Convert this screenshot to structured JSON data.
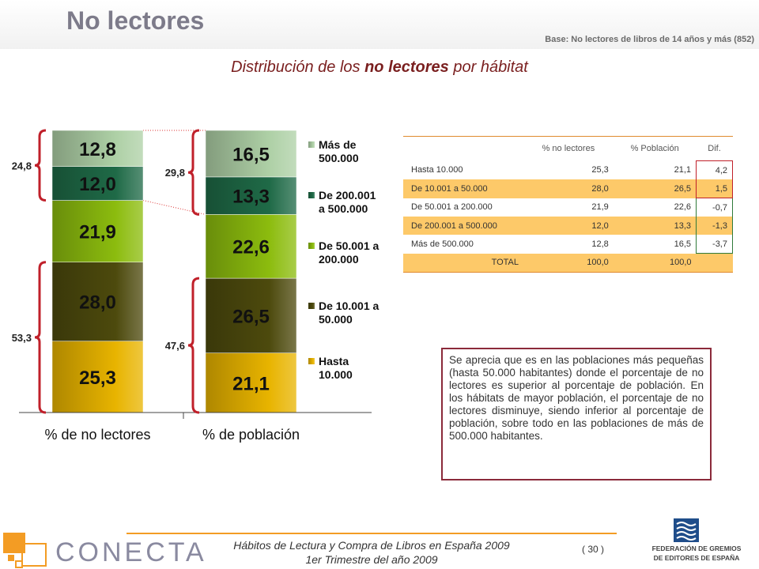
{
  "header": {
    "title": "No lectores",
    "base_note": "Base: No lectores de libros de 14 años y más (852)"
  },
  "subtitle": {
    "before": "Distribución de los ",
    "bold": "no lectores",
    "after": " por hábitat"
  },
  "chart_data": {
    "type": "bar",
    "stacked": true,
    "categories": [
      "% de no lectores",
      "% de población"
    ],
    "series": [
      {
        "name": "Hasta 10.000",
        "values": [
          25.3,
          21.1
        ],
        "color": "#e8b400"
      },
      {
        "name": "De 10.001 a 50.000",
        "values": [
          28.0,
          26.5
        ],
        "color": "#4d4a0d"
      },
      {
        "name": "De 50.001 a 200.000",
        "values": [
          21.9,
          22.6
        ],
        "color": "#8cbc0e"
      },
      {
        "name": "De 200.001 a 500.000",
        "values": [
          12.0,
          13.3
        ],
        "color": "#1f6a47"
      },
      {
        "name": "Más de 500.000",
        "values": [
          12.8,
          16.5
        ],
        "color": "#aed0a6"
      }
    ],
    "value_labels": [
      [
        "25,3",
        "28,0",
        "21,9",
        "12,0",
        "12,8"
      ],
      [
        "21,1",
        "26,5",
        "22,6",
        "13,3",
        "16,5"
      ]
    ],
    "legend_labels": [
      [
        "Más de",
        "500.000"
      ],
      [
        "De 200.001",
        "a 500.000"
      ],
      [
        "De 50.001 a",
        "200.000"
      ],
      [
        "De 10.001 a",
        "50.000"
      ],
      [
        "Hasta",
        "10.000"
      ]
    ],
    "brackets": [
      {
        "column": 0,
        "label": "24,8",
        "from_series": 3,
        "to_series": 4
      },
      {
        "column": 0,
        "label": "53,3",
        "from_series": 0,
        "to_series": 1
      },
      {
        "column": 1,
        "label": "29,8",
        "from_series": 3,
        "to_series": 4
      },
      {
        "column": 1,
        "label": "47,6",
        "from_series": 0,
        "to_series": 1
      }
    ],
    "legend_position": "right",
    "ylim": [
      0,
      100
    ]
  },
  "table": {
    "headers": [
      "",
      "% no lectores",
      "% Población",
      "Dif."
    ],
    "rows": [
      [
        "Hasta 10.000",
        "25,3",
        "21,1",
        "4,2"
      ],
      [
        "De 10.001 a 50.000",
        "28,0",
        "26,5",
        "1,5"
      ],
      [
        "De 50.001 a 200.000",
        "21,9",
        "22,6",
        "-0,7"
      ],
      [
        "De 200.001 a 500.000",
        "12,0",
        "13,3",
        "-1,3"
      ],
      [
        "Más de 500.000",
        "12,8",
        "16,5",
        "-3,7"
      ],
      [
        "TOTAL",
        "100,0",
        "100,0",
        ""
      ]
    ]
  },
  "textbox": "Se aprecia que es en las poblaciones más pequeñas (hasta 50.000 habitantes) donde el porcentaje de no lectores es superior al porcentaje de población. En los hábitats de mayor población, el porcentaje de no lectores disminuye, siendo inferior al porcentaje de población, sobre todo en las poblaciones de más de 500.000 habitantes.",
  "footer": {
    "line1": "Hábitos de Lectura y Compra de Libros en España 2009",
    "line2": "1er Trimestre del año 2009",
    "page": "( 30 )",
    "brand": "CONECTA",
    "federation": [
      "FEDERACIÓN DE GREMIOS",
      "DE EDITORES DE ESPAÑA"
    ]
  },
  "colors": {
    "accent_orange": "#f39c24",
    "bracket_red": "#c0202a",
    "table_highlight": "#fdc969",
    "textbox_border": "#8b2a3a"
  }
}
